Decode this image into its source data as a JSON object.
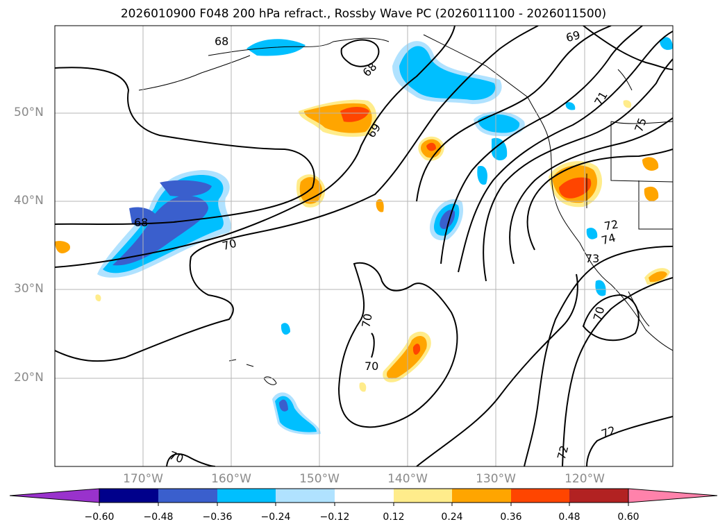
{
  "title": "2026010900 F048 200 hPa refract., Rossby Wave PC (2026011100 - 2026011500)",
  "lat_labels": [
    "50°N",
    "40°N",
    "30°N",
    "20°N"
  ],
  "lon_labels": [
    "170°W",
    "160°W",
    "150°W",
    "140°W",
    "130°W",
    "120°W"
  ],
  "contour_labels": [
    "68",
    "68",
    "69",
    "69",
    "68",
    "70",
    "70",
    "71",
    "72",
    "73",
    "74",
    "75",
    "70",
    "72",
    "72",
    "70",
    "70"
  ],
  "colorbar": {
    "ticks": [
      "−0.60",
      "−0.48",
      "−0.36",
      "−0.24",
      "−0.12",
      "0.12",
      "0.24",
      "0.36",
      "0.48",
      "0.60"
    ],
    "colors": [
      "#9932cc",
      "#00008b",
      "#3a5fcd",
      "#00bfff",
      "#b0e2ff",
      "#ffffff",
      "#ffec8b",
      "#ffa500",
      "#ff4500",
      "#b22222",
      "#ff82ab"
    ]
  },
  "fill_colors": {
    "neg_light": "#b0e2ff",
    "neg_mid": "#00bfff",
    "neg_dark": "#3a5fcd",
    "pos_light": "#ffec8b",
    "pos_mid": "#ffa500",
    "pos_dark": "#ff4500"
  }
}
